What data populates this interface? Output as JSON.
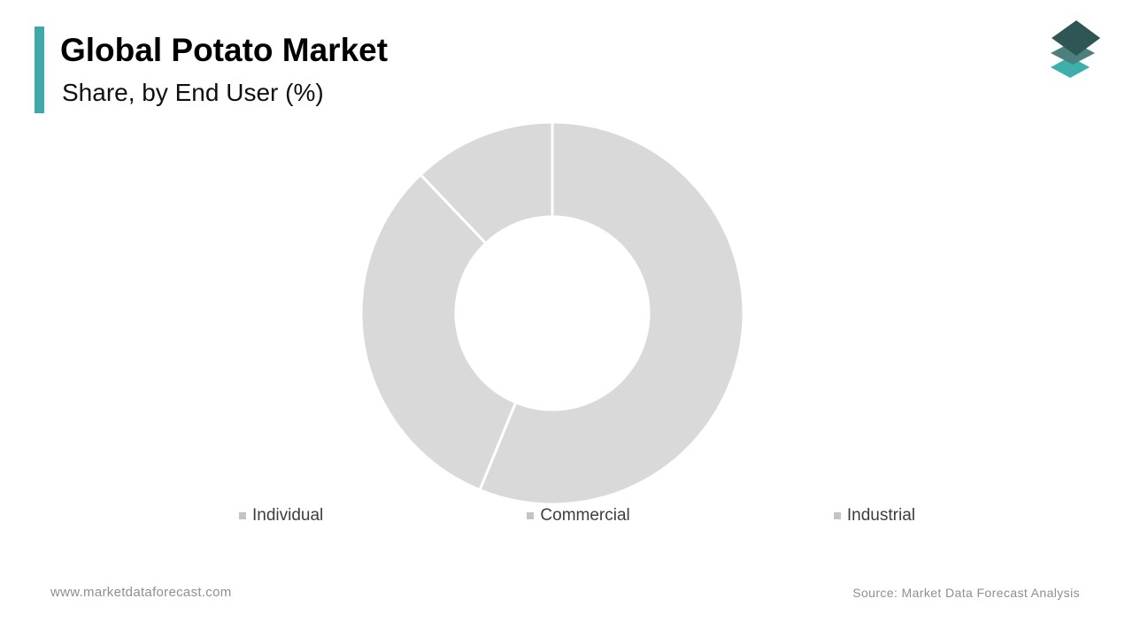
{
  "page": {
    "title": "Global Potato Market",
    "subtitle": "Share, by End User (%)"
  },
  "footer": {
    "website": "www.marketdataforecast.com",
    "source": "Source: Market Data Forecast Analysis"
  },
  "legend": {
    "items": [
      "Individual",
      "Commercial",
      "Industrial"
    ]
  },
  "colors": {
    "accent_teal": "#3fa8a8",
    "slice_gray": "#d9d9d9",
    "slice_divider": "#ffffff",
    "legend_marker_gray": "#c4c4c4",
    "legend_text": "#3d3d3d",
    "footer_text": "#8f8f8f",
    "logo_layer_top": "#2e5654",
    "logo_layer_middle": "#4c7f7d",
    "logo_layer_bottom": "#3eb0ac"
  },
  "chart_data": {
    "type": "pie",
    "donut": true,
    "title": "Global Potato Market",
    "subtitle": "Share, by End User (%)",
    "categories": [
      "Individual",
      "Commercial",
      "Industrial"
    ],
    "values": [
      56.2,
      31.7,
      12.1
    ],
    "unit": "%",
    "start_angle_deg": 0,
    "direction": "clockwise",
    "data_labels_shown": false,
    "slice_colors": [
      "#d9d9d9",
      "#d9d9d9",
      "#d9d9d9"
    ],
    "legend_position": "bottom",
    "note": "All slices rendered in placeholder gray with white dividers; percentage values estimated from measured arc angles (202°, 114°, 44°), no numeric labels visible."
  }
}
